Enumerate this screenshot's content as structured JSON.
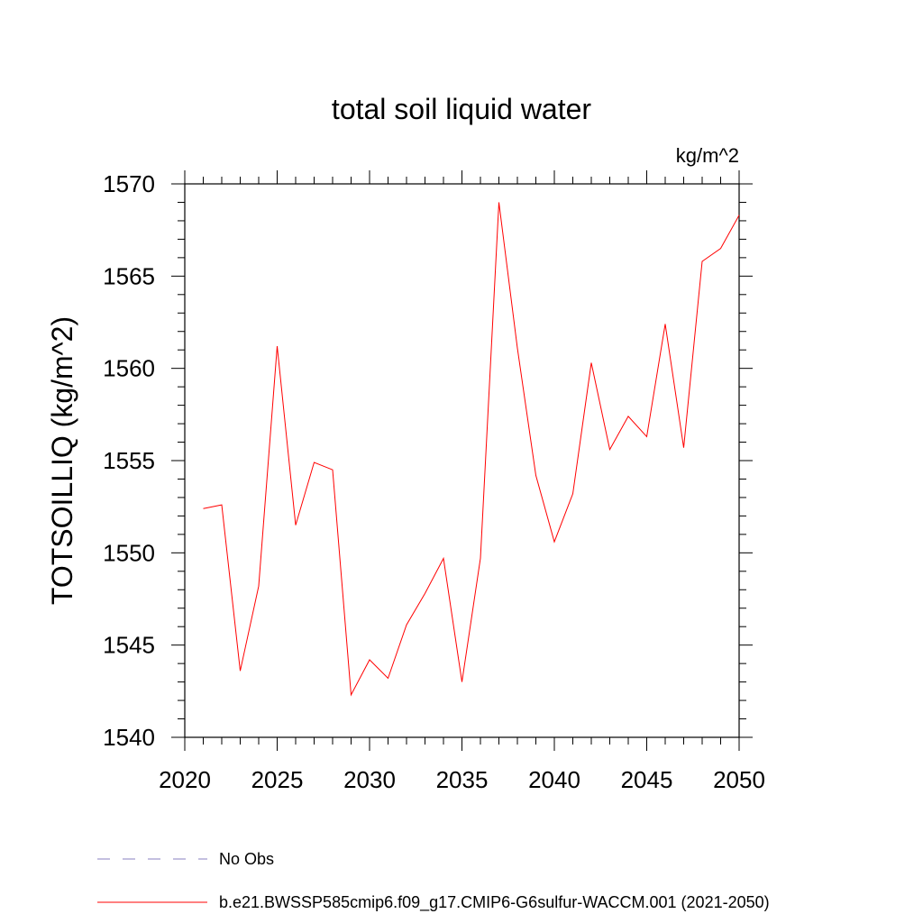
{
  "chart_data": {
    "type": "line",
    "title": "total soil liquid water",
    "units": "kg/m^2",
    "ylabel": "TOTSOILLIQ  (kg/m^2)",
    "xlabel": "",
    "xlim": [
      2020,
      2050
    ],
    "ylim": [
      1540,
      1570
    ],
    "x_ticks": [
      2020,
      2025,
      2030,
      2035,
      2040,
      2045,
      2050
    ],
    "y_ticks": [
      1540,
      1545,
      1550,
      1555,
      1560,
      1565,
      1570
    ],
    "grid": false,
    "legend_position": "bottom-left",
    "series": [
      {
        "name": "b.e21.BWSSP585cmip6.f09_g17.CMIP6-G6sulfur-WACCM.001 (2021-2050)",
        "color": "#ff0000",
        "style": "solid",
        "x": [
          2021,
          2022,
          2023,
          2024,
          2025,
          2026,
          2027,
          2028,
          2029,
          2030,
          2031,
          2032,
          2033,
          2034,
          2035,
          2036,
          2037,
          2038,
          2039,
          2040,
          2041,
          2042,
          2043,
          2044,
          2045,
          2046,
          2047,
          2048,
          2049,
          2050
        ],
        "y": [
          1552.4,
          1552.6,
          1543.6,
          1548.2,
          1561.2,
          1551.5,
          1554.9,
          1554.5,
          1542.3,
          1544.2,
          1543.2,
          1546.1,
          1547.8,
          1549.7,
          1543.0,
          1549.7,
          1569.0,
          1561.1,
          1554.2,
          1550.6,
          1553.2,
          1560.3,
          1555.6,
          1557.4,
          1556.3,
          1562.4,
          1555.7,
          1565.8,
          1566.5,
          1568.3
        ]
      },
      {
        "name": "No Obs",
        "color": "#8a7fc0",
        "style": "dashed",
        "x": [],
        "y": []
      }
    ]
  }
}
